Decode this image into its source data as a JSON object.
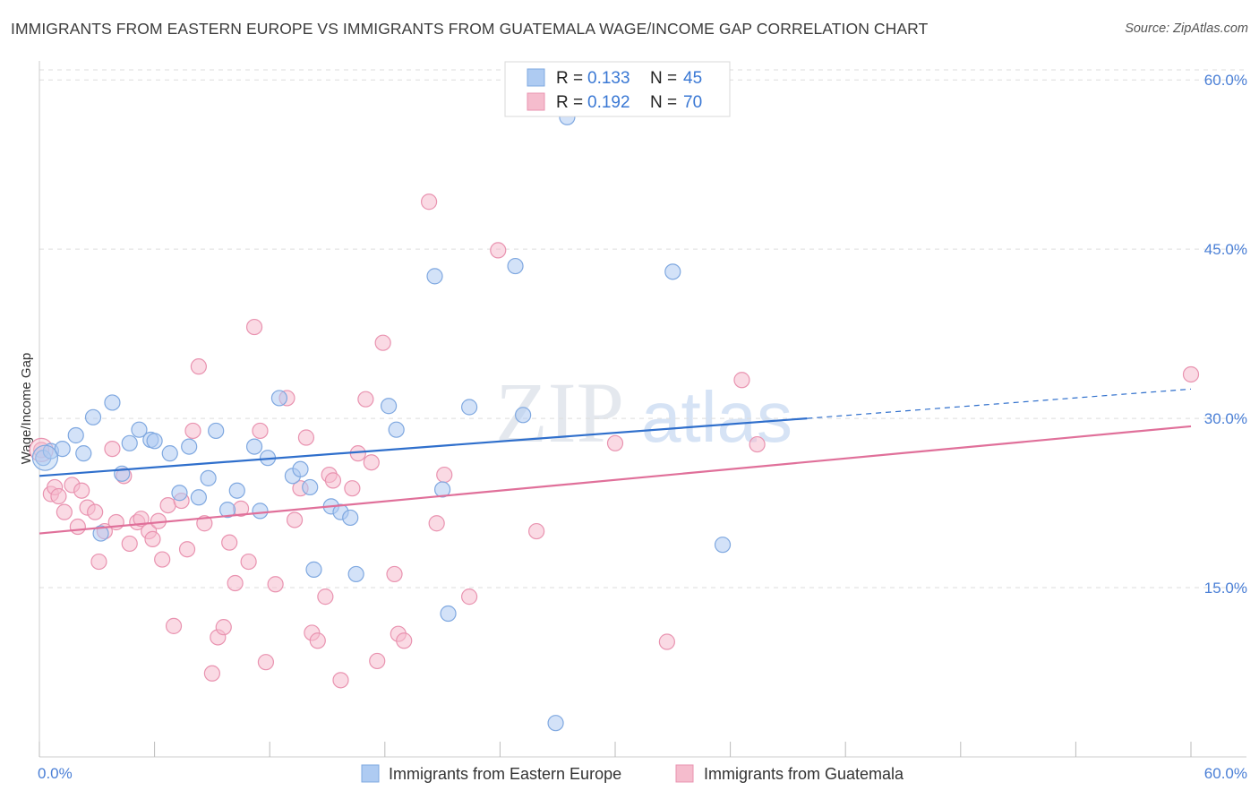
{
  "title": "IMMIGRANTS FROM EASTERN EUROPE VS IMMIGRANTS FROM GUATEMALA WAGE/INCOME GAP CORRELATION CHART",
  "source": "Source: ZipAtlas.com",
  "watermark": {
    "zip": "ZIP",
    "atlas": "atlas"
  },
  "colors": {
    "blue_fill": "#aecbf2",
    "blue_stroke": "#7fa8e0",
    "blue_line": "#2f6fcc",
    "pink_fill": "#f5bccd",
    "pink_stroke": "#e993b0",
    "pink_line": "#e0709a",
    "tick_text": "#4a7fd6",
    "grid": "#dddddd"
  },
  "legend": {
    "rows": [
      {
        "r_label": "R = ",
        "r_value": "0.133",
        "n_label": "N = ",
        "n_value": "45"
      },
      {
        "r_label": "R = ",
        "r_value": "0.192",
        "n_label": "N = ",
        "n_value": "70"
      }
    ]
  },
  "bottom_legend": [
    "Immigrants from Eastern Europe",
    "Immigrants from Guatemala"
  ],
  "chart_data": {
    "type": "scatter",
    "title": "IMMIGRANTS FROM EASTERN EUROPE VS IMMIGRANTS FROM GUATEMALA WAGE/INCOME GAP CORRELATION CHART",
    "xlabel": "",
    "ylabel": "Wage/Income Gap",
    "xlim": [
      0,
      60
    ],
    "ylim": [
      0,
      62
    ],
    "x_tick_labels": [
      "0.0%",
      "60.0%"
    ],
    "y_ticks": [
      15,
      30,
      45,
      60
    ],
    "y_tick_labels": [
      "15.0%",
      "30.0%",
      "45.0%",
      "60.0%"
    ],
    "series": [
      {
        "name": "Immigrants from Eastern Europe",
        "color": "blue",
        "points": [
          [
            0.2,
            26.5
          ],
          [
            0.6,
            27.1
          ],
          [
            1.2,
            27.3
          ],
          [
            1.9,
            28.5
          ],
          [
            2.3,
            26.9
          ],
          [
            2.8,
            30.1
          ],
          [
            3.2,
            19.8
          ],
          [
            3.8,
            31.4
          ],
          [
            4.3,
            25.1
          ],
          [
            4.7,
            27.8
          ],
          [
            5.2,
            29.0
          ],
          [
            5.8,
            28.1
          ],
          [
            6.0,
            28.0
          ],
          [
            6.8,
            26.9
          ],
          [
            7.3,
            23.4
          ],
          [
            7.8,
            27.5
          ],
          [
            8.3,
            23.0
          ],
          [
            8.8,
            24.7
          ],
          [
            9.2,
            28.9
          ],
          [
            9.8,
            21.9
          ],
          [
            10.3,
            23.6
          ],
          [
            11.2,
            27.5
          ],
          [
            11.5,
            21.8
          ],
          [
            11.9,
            26.5
          ],
          [
            12.5,
            31.8
          ],
          [
            13.2,
            24.9
          ],
          [
            13.6,
            25.5
          ],
          [
            14.1,
            23.9
          ],
          [
            14.3,
            16.6
          ],
          [
            15.2,
            22.2
          ],
          [
            15.7,
            21.7
          ],
          [
            16.2,
            21.2
          ],
          [
            16.5,
            16.2
          ],
          [
            18.2,
            31.1
          ],
          [
            18.6,
            29.0
          ],
          [
            20.6,
            42.6
          ],
          [
            21.0,
            23.7
          ],
          [
            21.3,
            12.7
          ],
          [
            22.4,
            31.0
          ],
          [
            24.8,
            43.5
          ],
          [
            25.2,
            30.3
          ],
          [
            26.9,
            3.0
          ],
          [
            27.5,
            56.7
          ],
          [
            33.0,
            43.0
          ],
          [
            35.6,
            18.8
          ]
        ]
      },
      {
        "name": "Immigrants from Guatemala",
        "color": "pink",
        "points": [
          [
            0.1,
            27.2
          ],
          [
            0.6,
            23.3
          ],
          [
            0.8,
            23.9
          ],
          [
            1.0,
            23.1
          ],
          [
            1.3,
            21.7
          ],
          [
            1.7,
            24.1
          ],
          [
            2.0,
            20.4
          ],
          [
            2.2,
            23.6
          ],
          [
            2.5,
            22.1
          ],
          [
            2.9,
            21.7
          ],
          [
            3.1,
            17.3
          ],
          [
            3.4,
            20.0
          ],
          [
            3.8,
            27.3
          ],
          [
            4.0,
            20.8
          ],
          [
            4.4,
            24.9
          ],
          [
            4.7,
            18.9
          ],
          [
            5.1,
            20.8
          ],
          [
            5.3,
            21.1
          ],
          [
            5.7,
            20.0
          ],
          [
            5.9,
            19.3
          ],
          [
            6.2,
            20.9
          ],
          [
            6.4,
            17.5
          ],
          [
            6.7,
            22.3
          ],
          [
            7.0,
            11.6
          ],
          [
            7.4,
            22.7
          ],
          [
            7.7,
            18.4
          ],
          [
            8.0,
            28.9
          ],
          [
            8.3,
            34.6
          ],
          [
            8.6,
            20.7
          ],
          [
            9.0,
            7.4
          ],
          [
            9.3,
            10.6
          ],
          [
            9.6,
            11.5
          ],
          [
            9.9,
            19.0
          ],
          [
            10.2,
            15.4
          ],
          [
            10.5,
            22.0
          ],
          [
            10.9,
            17.3
          ],
          [
            11.2,
            38.1
          ],
          [
            11.5,
            28.9
          ],
          [
            11.8,
            8.4
          ],
          [
            12.3,
            15.3
          ],
          [
            12.9,
            31.8
          ],
          [
            13.3,
            21.0
          ],
          [
            13.6,
            23.8
          ],
          [
            13.9,
            28.3
          ],
          [
            14.2,
            11.0
          ],
          [
            14.5,
            10.3
          ],
          [
            14.9,
            14.2
          ],
          [
            15.1,
            25.0
          ],
          [
            15.3,
            24.5
          ],
          [
            15.7,
            6.8
          ],
          [
            16.3,
            23.8
          ],
          [
            16.6,
            26.9
          ],
          [
            17.0,
            31.7
          ],
          [
            17.3,
            26.1
          ],
          [
            17.6,
            8.5
          ],
          [
            17.9,
            36.7
          ],
          [
            18.5,
            16.2
          ],
          [
            18.7,
            10.9
          ],
          [
            19.0,
            10.3
          ],
          [
            20.3,
            49.2
          ],
          [
            20.7,
            20.7
          ],
          [
            21.1,
            25.0
          ],
          [
            22.4,
            14.2
          ],
          [
            23.9,
            44.9
          ],
          [
            25.9,
            20.0
          ],
          [
            30.0,
            27.8
          ],
          [
            32.7,
            10.2
          ],
          [
            36.6,
            33.4
          ],
          [
            37.4,
            27.7
          ],
          [
            60.0,
            33.9
          ]
        ]
      }
    ],
    "trend_lines": [
      {
        "series": "Immigrants from Eastern Europe",
        "x0": 0,
        "y0": 24.9,
        "x1": 40,
        "y1": 30.0,
        "dashed_from": 40,
        "x_end": 60,
        "y_end": 32.6
      },
      {
        "series": "Immigrants from Guatemala",
        "x0": 0,
        "y0": 19.8,
        "x1": 60,
        "y1": 29.3
      }
    ]
  }
}
